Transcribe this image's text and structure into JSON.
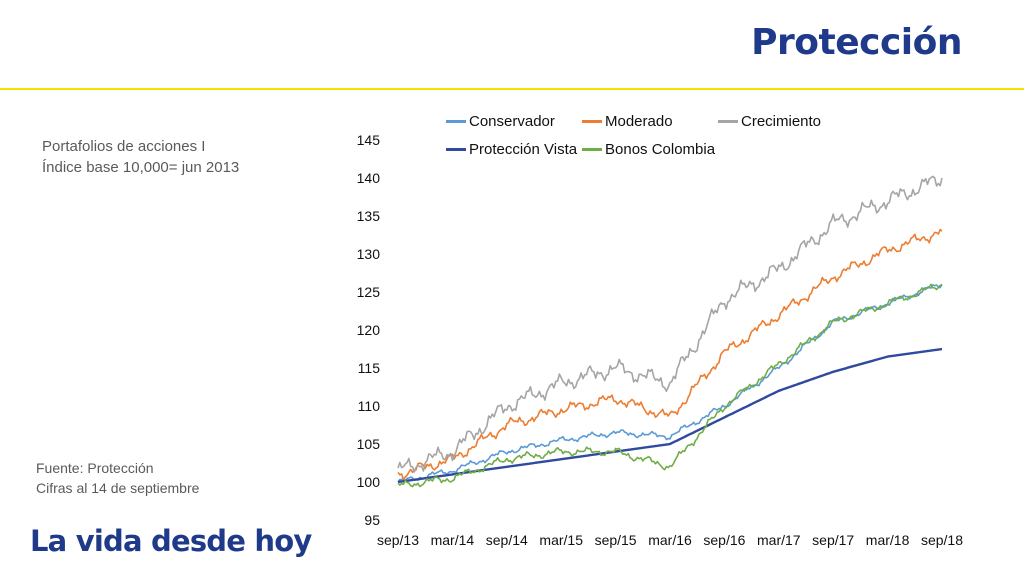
{
  "header": {
    "title": "Protección"
  },
  "subtitle": {
    "line1": "Portafolios de acciones I",
    "line2": "Índice base 10,000= jun 2013"
  },
  "source": {
    "line1": "Fuente: Protección",
    "line2": "Cifras al 14 de septiembre"
  },
  "footer": {
    "tagline": "La vida desde hoy"
  },
  "colors": {
    "brand_blue": "#1f3a8a",
    "accent_yellow": "#f2e600"
  },
  "chart_data": {
    "type": "line",
    "x": [
      "sep/13",
      "mar/14",
      "sep/14",
      "mar/15",
      "sep/15",
      "mar/16",
      "sep/16",
      "mar/17",
      "sep/17",
      "mar/18",
      "sep/18"
    ],
    "ylim": [
      95,
      145
    ],
    "yticks": [
      95,
      100,
      105,
      110,
      115,
      120,
      125,
      130,
      135,
      140,
      145
    ],
    "grid": false,
    "legend_position": "top",
    "series": [
      {
        "name": "Conservador",
        "color": "#5b9bd5",
        "values": [
          100,
          101.5,
          104,
          105.5,
          106.5,
          106,
          110,
          115,
          121,
          123.5,
          126
        ]
      },
      {
        "name": "Moderado",
        "color": "#ed7d31",
        "values": [
          101,
          103,
          107.5,
          109.5,
          111,
          108.5,
          117,
          122,
          127,
          130.5,
          133
        ]
      },
      {
        "name": "Crecimiento",
        "color": "#a5a5a5",
        "values": [
          101.5,
          104,
          110,
          113,
          115,
          113,
          124,
          128,
          134,
          137,
          140
        ]
      },
      {
        "name": "Protección Vista",
        "color": "#2f4a9e",
        "values": [
          100,
          101,
          102,
          103,
          104,
          105,
          108.5,
          112,
          114.5,
          116.5,
          117.5
        ]
      },
      {
        "name": "Bonos Colombia",
        "color": "#70ad47",
        "values": [
          99.5,
          100.5,
          103,
          104,
          104,
          102,
          110,
          115.5,
          121,
          123.5,
          126
        ]
      }
    ]
  }
}
